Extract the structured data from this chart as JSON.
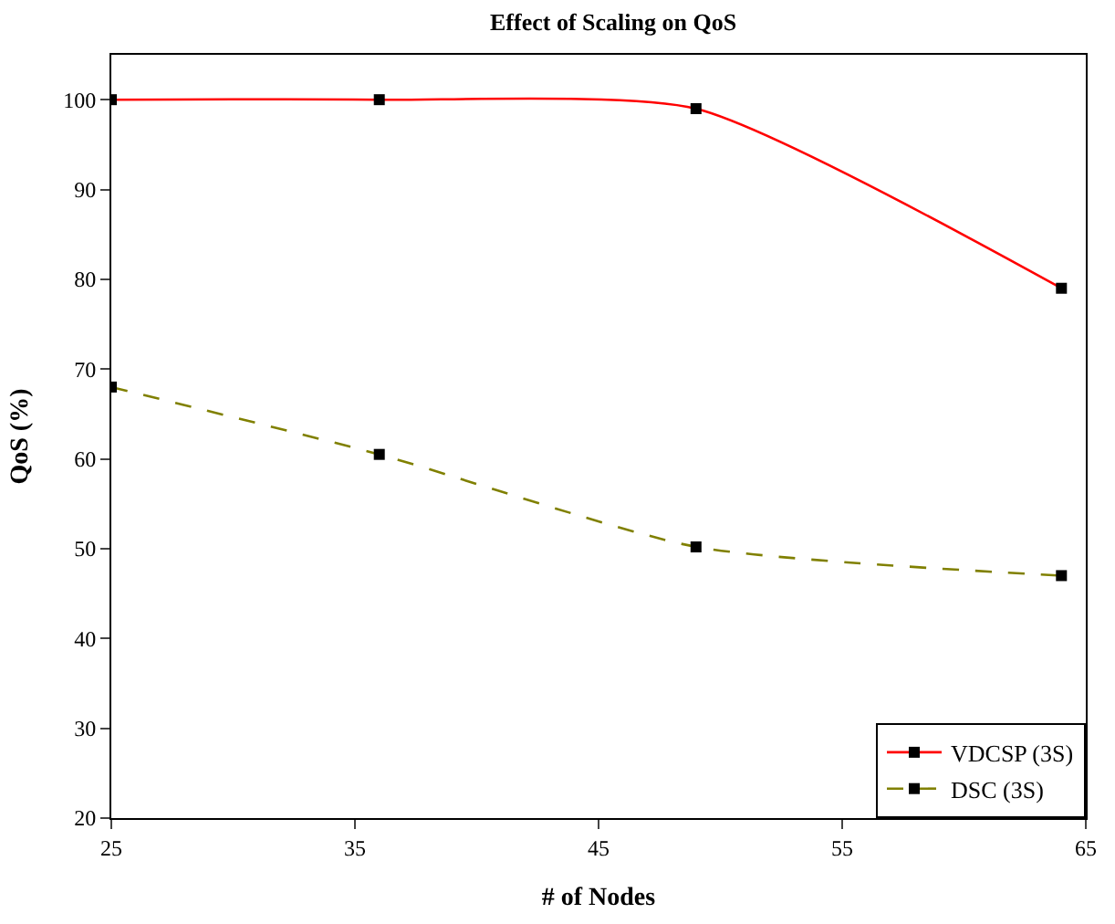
{
  "chart_data": {
    "type": "line",
    "title": "Effect of Scaling on QoS",
    "xlabel": "# of Nodes",
    "ylabel": "QoS (%)",
    "x": [
      25,
      36,
      49,
      64
    ],
    "series": [
      {
        "name": "VDCSP (3S)",
        "color": "#ff0000",
        "values": [
          100,
          100,
          99,
          79
        ],
        "line_style": "solid"
      },
      {
        "name": "DSC (3S)",
        "color": "#808000",
        "values": [
          68,
          60.5,
          50.2,
          47
        ],
        "line_style": "dashed"
      }
    ],
    "xlim": [
      25,
      65
    ],
    "xticks": [
      25,
      35,
      45,
      55,
      65
    ],
    "ylim": [
      20,
      105
    ],
    "yticks": [
      20,
      30,
      40,
      50,
      60,
      70,
      80,
      90,
      100
    ],
    "grid": false,
    "legend": "bottom right",
    "marker": "square"
  }
}
